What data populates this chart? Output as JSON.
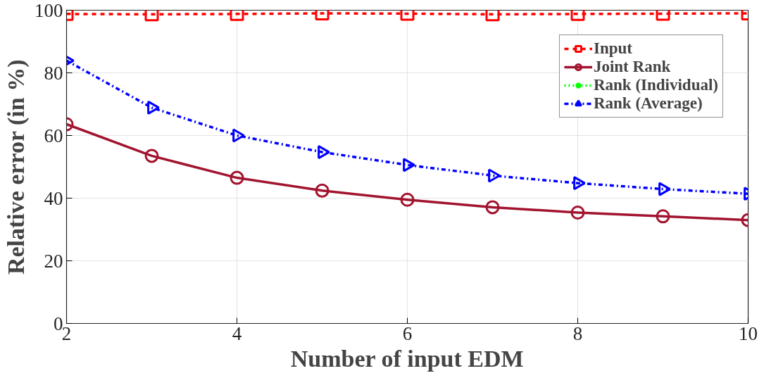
{
  "chart_data": {
    "type": "line",
    "xlabel": "Number of input EDM",
    "ylabel": "Relative error (in %)",
    "x": [
      2,
      3,
      4,
      5,
      6,
      7,
      8,
      9,
      10
    ],
    "series": [
      {
        "name": "Input",
        "color": "#ff0000",
        "marker": "square",
        "line_style": "dashed",
        "values": [
          98.8,
          98.7,
          98.8,
          99.0,
          98.9,
          98.7,
          98.8,
          98.9,
          99.0
        ]
      },
      {
        "name": "Joint Rank",
        "color": "#a2142f",
        "marker": "circle",
        "line_style": "solid",
        "values": [
          63.6,
          53.5,
          46.5,
          42.4,
          39.5,
          37.1,
          35.4,
          34.2,
          33.0
        ]
      },
      {
        "name": "Rank (Individual)",
        "color": "#00ff00",
        "marker": "star",
        "line_style": "dotted",
        "values": [
          null,
          null,
          null,
          null,
          null,
          null,
          null,
          null,
          null
        ]
      },
      {
        "name": "Rank (Average)",
        "color": "#0000ff",
        "marker": "triangle",
        "line_style": "dashdot",
        "values": [
          83.9,
          68.9,
          60.0,
          54.7,
          50.6,
          47.2,
          44.8,
          42.9,
          41.4
        ]
      }
    ],
    "xlim": [
      2,
      10
    ],
    "ylim": [
      0,
      100
    ],
    "xticks": [
      2,
      4,
      6,
      8,
      10
    ],
    "yticks": [
      0,
      20,
      40,
      60,
      80,
      100
    ],
    "grid": true,
    "legend": "top right"
  }
}
